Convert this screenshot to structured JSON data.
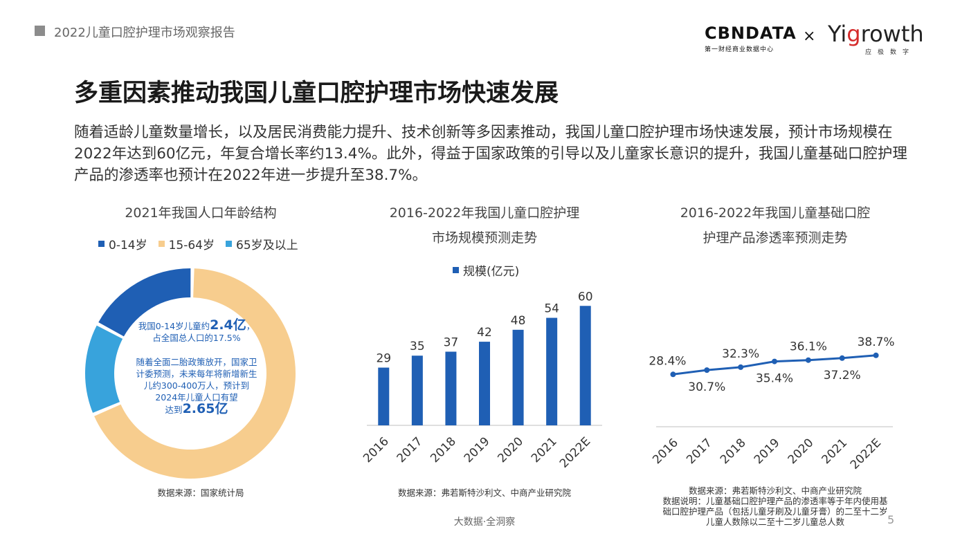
{
  "header": {
    "report_title": "2022儿童口腔护理市场观察报告",
    "logo_cbn": "CBNDATA",
    "logo_cbn_sub": "第一财经商业数据中心",
    "logo_times": "×",
    "logo_yi": "Yi",
    "logo_growth_g": "g",
    "logo_growth": "rowth",
    "logo_yi_sub": "应极数字"
  },
  "main": {
    "title": "多重因素推动我国儿童口腔护理市场快速发展",
    "intro": "随着适龄儿童数量增长，以及居民消费能力提升、技术创新等多因素推动，我国儿童口腔护理市场快速发展，预计市场规模在2022年达到60亿元，年复合增长率约13.4%。此外，得益于国家政策的引导以及儿童家长意识的提升，我国儿童基础口腔护理产品的渗透率也预计在2022年进一步提升至38.7%。"
  },
  "donut_panel": {
    "title": "2021年我国人口年龄结构",
    "center_line1_pre": "我国0-14岁儿童约",
    "center_line1_big": "2.4亿",
    "center_line1_post": "，",
    "center_line2": "占全国总人口的17.5%",
    "center_para2": "随着全面二胎政策放开，国家卫计委预测，未来每年将新增新生儿约300-400万人，预计到2024年儿童人口有望",
    "center_para2_pre_big": "达到",
    "center_para2_big": "2.65亿",
    "source": "数据来源：国家统计局"
  },
  "bar_panel": {
    "title_line1": "2016-2022年我国儿童口腔护理",
    "title_line2": "市场规模预测走势",
    "source": "数据来源：弗若斯特沙利文、中商产业研究院"
  },
  "line_panel": {
    "title_line1": "2016-2022年我国儿童基础口腔",
    "title_line2": "护理产品渗透率预测走势",
    "source_line1": "数据来源：弗若斯特沙利文、中商产业研究院",
    "source_line2": "数据说明：儿童基础口腔护理产品的渗透率等于年内使用基",
    "source_line3": "础口腔护理产品（包括儿童牙刷及儿童牙膏）的二至十二岁",
    "source_line4": "儿童人数除以二至十二岁儿童总人数"
  },
  "footer": {
    "text": "大数据·全洞察",
    "page_number": "5"
  },
  "chart_data": [
    {
      "type": "pie",
      "title": "2021年我国人口年龄结构",
      "legend_position": "top",
      "series": [
        {
          "name": "0-14岁",
          "value": 17.5,
          "color": "#1f5fb4"
        },
        {
          "name": "15-64岁",
          "value": 68.3,
          "color": "#f7cd8e"
        },
        {
          "name": "65岁及以上",
          "value": 14.2,
          "color": "#38a3dc"
        }
      ]
    },
    {
      "type": "bar",
      "title": "2016-2022年我国儿童口腔护理市场规模预测走势",
      "categories": [
        "2016",
        "2017",
        "2018",
        "2019",
        "2020",
        "2021",
        "2022E"
      ],
      "series": [
        {
          "name": "规模(亿元)",
          "values": [
            29,
            35,
            37,
            42,
            48,
            54,
            60
          ],
          "color": "#1f5fb4"
        }
      ],
      "legend_position": "top",
      "ylim": [
        0,
        66
      ],
      "grid": false
    },
    {
      "type": "line",
      "title": "2016-2022年我国儿童基础口腔护理产品渗透率预测走势",
      "categories": [
        "2016",
        "2017",
        "2018",
        "2019",
        "2020",
        "2021",
        "2022E"
      ],
      "series": [
        {
          "values": [
            28.4,
            30.7,
            32.3,
            35.4,
            36.1,
            37.2,
            38.7
          ],
          "color": "#1f5fb4"
        }
      ],
      "labels": [
        "28.4%",
        "30.7%",
        "32.3%",
        "35.4%",
        "36.1%",
        "37.2%",
        "38.7%"
      ],
      "ylim": [
        0,
        60
      ],
      "grid": false
    }
  ]
}
